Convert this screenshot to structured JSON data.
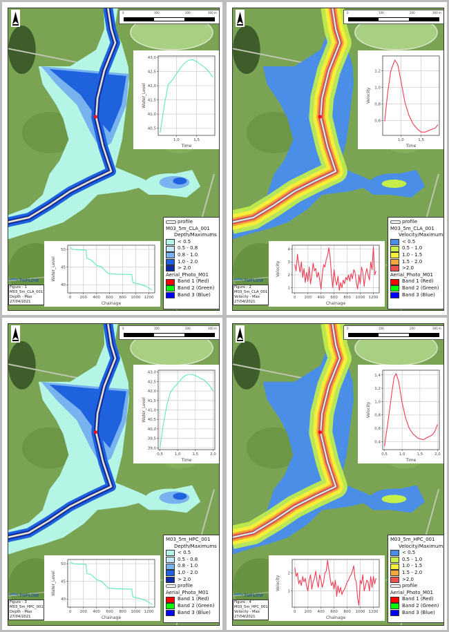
{
  "scale_bar": {
    "labels": [
      "0",
      "100",
      "200",
      "300 m"
    ]
  },
  "panels": [
    {
      "type": "depth",
      "figure_label": [
        "Figure - 1",
        "M03_5m_CLA_001",
        "Depth - Max",
        "27/04/2021"
      ],
      "logo": "TUFLOW",
      "legend": [
        {
          "kind": "profile",
          "label": "profile"
        },
        {
          "kind": "layer",
          "label": "M03_5m_CLA_001"
        },
        {
          "kind": "sublayer",
          "label": "Depth/Maximums"
        },
        {
          "kind": "swatch",
          "label": "< 0.5",
          "color": "#b4f5e6"
        },
        {
          "kind": "swatch",
          "label": "0.5 - 0.8",
          "color": "#c4e8fa"
        },
        {
          "kind": "swatch",
          "label": "0.8 - 1.0",
          "color": "#78b2ef"
        },
        {
          "kind": "swatch",
          "label": "1.0 - 2.0",
          "color": "#1e62de"
        },
        {
          "kind": "swatch",
          "label": "> 2.0",
          "color": "#0b2aa6"
        },
        {
          "kind": "layer",
          "label": "Aerial_Photo_M01"
        },
        {
          "kind": "swatch",
          "label": "Band 1 (Red)",
          "color": "#ff0000"
        },
        {
          "kind": "swatch",
          "label": "Band 2 (Green)",
          "color": "#00ff00"
        },
        {
          "kind": "swatch",
          "label": "Band 3 (Blue)",
          "color": "#0000ff"
        }
      ]
    },
    {
      "type": "velocity",
      "figure_label": [
        "Figure - 2",
        "M03_5m_CLA_001",
        "Velocity - Max",
        "27/04/2021"
      ],
      "logo": "TUFLOW",
      "legend": [
        {
          "kind": "profile",
          "label": "profile"
        },
        {
          "kind": "layer",
          "label": "M03_5m_CLA_001"
        },
        {
          "kind": "sublayer",
          "label": "Velocity/Maximums"
        },
        {
          "kind": "swatch",
          "label": "< 0.5",
          "color": "#4a8ee8"
        },
        {
          "kind": "swatch",
          "label": "0.5 - 1.0",
          "color": "#c4ef4a"
        },
        {
          "kind": "swatch",
          "label": "1.0 - 1.5",
          "color": "#f5ef3a"
        },
        {
          "kind": "swatch",
          "label": "1.5 - 2.0",
          "color": "#f4a83c"
        },
        {
          "kind": "swatch",
          "label": ">2.0",
          "color": "#ef5050"
        },
        {
          "kind": "layer",
          "label": "Aerial_Photo_M01"
        },
        {
          "kind": "swatch",
          "label": "Band 1 (Red)",
          "color": "#ff0000"
        },
        {
          "kind": "swatch",
          "label": "Band 2 (Green)",
          "color": "#00ff00"
        },
        {
          "kind": "swatch",
          "label": "Band 3 (Blue)",
          "color": "#0000ff"
        }
      ]
    },
    {
      "type": "depth",
      "figure_label": [
        "Figure - 3",
        "M03_5m_HPC_001",
        "Depth - Max",
        "27/04/2021"
      ],
      "logo": "TUFLOW",
      "legend": [
        {
          "kind": "layer",
          "label": "M03_5m_HPC_001"
        },
        {
          "kind": "sublayer",
          "label": "Depth/Maximums"
        },
        {
          "kind": "swatch",
          "label": "< 0.5",
          "color": "#b4f5e6"
        },
        {
          "kind": "swatch",
          "label": "0.5 - 0.8",
          "color": "#c4e8fa"
        },
        {
          "kind": "swatch",
          "label": "0.8 - 1.0",
          "color": "#78b2ef"
        },
        {
          "kind": "swatch",
          "label": "1.0 - 2.0",
          "color": "#1e62de"
        },
        {
          "kind": "swatch",
          "label": "> 2.0",
          "color": "#0b2aa6"
        },
        {
          "kind": "profile",
          "label": "profile"
        },
        {
          "kind": "layer",
          "label": "Aerial_Photo_M01"
        },
        {
          "kind": "swatch",
          "label": "Band 1 (Red)",
          "color": "#ff0000"
        },
        {
          "kind": "swatch",
          "label": "Band 2 (Green)",
          "color": "#00ff00"
        },
        {
          "kind": "swatch",
          "label": "Band 3 (Blue)",
          "color": "#0000ff"
        }
      ]
    },
    {
      "type": "velocity",
      "figure_label": [
        "Figure - 4",
        "M03_5m_HPC_001",
        "Velocity - Max",
        "27/04/2021"
      ],
      "logo": "TUFLOW",
      "legend": [
        {
          "kind": "layer",
          "label": "M03_5m_HPC_001"
        },
        {
          "kind": "sublayer",
          "label": "Velocity/Maximums"
        },
        {
          "kind": "swatch",
          "label": "< 0.5",
          "color": "#4a8ee8"
        },
        {
          "kind": "swatch",
          "label": "0.5 - 1.0",
          "color": "#c4ef4a"
        },
        {
          "kind": "swatch",
          "label": "1.0 - 1.5",
          "color": "#f5ef3a"
        },
        {
          "kind": "swatch",
          "label": "1.5 - 2.0",
          "color": "#f4a83c"
        },
        {
          "kind": "swatch",
          "label": ">2.0",
          "color": "#ef5050"
        },
        {
          "kind": "profile",
          "label": "profile"
        },
        {
          "kind": "layer",
          "label": "Aerial_Photo_M01"
        },
        {
          "kind": "swatch",
          "label": "Band 1 (Red)",
          "color": "#ff0000"
        },
        {
          "kind": "swatch",
          "label": "Band 2 (Green)",
          "color": "#00ff00"
        },
        {
          "kind": "swatch",
          "label": "Band 3 (Blue)",
          "color": "#0000ff"
        }
      ]
    }
  ],
  "chart_data": [
    {
      "panel": 0,
      "role": "timeseries",
      "type": "line",
      "xlabel": "Time",
      "ylabel": "Water_Level",
      "color": "#5ee8c0",
      "xlim": [
        0.55,
        1.95
      ],
      "ylim": [
        40.25,
        43.05
      ],
      "xticks": [
        {
          "v": 1.0,
          "label": "1,0"
        },
        {
          "v": 1.5,
          "label": "1,5"
        }
      ],
      "yticks": [
        {
          "v": 40.5,
          "label": "40,5"
        },
        {
          "v": 41.0,
          "label": "41,0"
        },
        {
          "v": 41.5,
          "label": "41,5"
        },
        {
          "v": 42.0,
          "label": "42,0"
        },
        {
          "v": 42.5,
          "label": "42,5"
        },
        {
          "v": 43.0,
          "label": "43,0"
        }
      ],
      "x": [
        0.6,
        0.7,
        0.8,
        0.9,
        1.0,
        1.1,
        1.2,
        1.3,
        1.4,
        1.5,
        1.6,
        1.7,
        1.8,
        1.9
      ],
      "y": [
        40.35,
        41.3,
        42.05,
        42.2,
        42.42,
        42.62,
        42.8,
        42.9,
        42.92,
        42.85,
        42.75,
        42.65,
        42.5,
        42.3
      ]
    },
    {
      "panel": 1,
      "role": "timeseries",
      "type": "line",
      "xlabel": "Time",
      "ylabel": "Velocity",
      "color": "#ef3b52",
      "xlim": [
        0.55,
        1.95
      ],
      "ylim": [
        0.42,
        1.38
      ],
      "xticks": [
        {
          "v": 1.0,
          "label": "1,0"
        },
        {
          "v": 1.5,
          "label": "1,5"
        }
      ],
      "yticks": [
        {
          "v": 0.6,
          "label": "0,6"
        },
        {
          "v": 0.8,
          "label": "0,8"
        },
        {
          "v": 1.0,
          "label": "1,0"
        },
        {
          "v": 1.2,
          "label": "1,2"
        }
      ],
      "x": [
        0.6,
        0.67,
        0.75,
        0.85,
        0.92,
        1.0,
        1.1,
        1.2,
        1.3,
        1.4,
        1.5,
        1.6,
        1.7,
        1.85,
        1.92
      ],
      "y": [
        0.59,
        0.92,
        1.2,
        1.33,
        1.28,
        1.08,
        0.82,
        0.66,
        0.56,
        0.5,
        0.46,
        0.46,
        0.48,
        0.51,
        0.55
      ]
    },
    {
      "panel": 2,
      "role": "timeseries",
      "type": "line",
      "xlabel": "Time",
      "ylabel": "Water_Level",
      "color": "#5ee8c0",
      "xlim": [
        0.45,
        2.05
      ],
      "ylim": [
        38.9,
        43.1
      ],
      "xticks": [
        {
          "v": 0.5,
          "label": "0,5"
        },
        {
          "v": 1.0,
          "label": "1,0"
        },
        {
          "v": 1.5,
          "label": "1,5"
        },
        {
          "v": 2.0,
          "label": "2,0"
        }
      ],
      "yticks": [
        {
          "v": 39.0,
          "label": "39,0"
        },
        {
          "v": 39.5,
          "label": "39,5"
        },
        {
          "v": 40.0,
          "label": "40,0"
        },
        {
          "v": 40.5,
          "label": "40,5"
        },
        {
          "v": 41.0,
          "label": "41,0"
        },
        {
          "v": 41.5,
          "label": "41,5"
        },
        {
          "v": 42.0,
          "label": "42,0"
        },
        {
          "v": 42.5,
          "label": "42,5"
        },
        {
          "v": 43.0,
          "label": "43,0"
        }
      ],
      "x": [
        0.5,
        0.6,
        0.7,
        0.8,
        0.9,
        1.0,
        1.1,
        1.2,
        1.3,
        1.4,
        1.5,
        1.6,
        1.75,
        1.9,
        2.0
      ],
      "y": [
        39.0,
        40.3,
        41.3,
        41.95,
        42.2,
        42.4,
        42.62,
        42.8,
        42.88,
        42.88,
        42.82,
        42.72,
        42.58,
        42.3,
        42.0
      ]
    },
    {
      "panel": 3,
      "role": "timeseries",
      "type": "line",
      "xlabel": "Time",
      "ylabel": "Velocity",
      "color": "#ef3b52",
      "xlim": [
        0.45,
        2.05
      ],
      "ylim": [
        0.28,
        1.47
      ],
      "xticks": [
        {
          "v": 0.5,
          "label": "0,5"
        },
        {
          "v": 1.0,
          "label": "1,0"
        },
        {
          "v": 1.5,
          "label": "1,5"
        },
        {
          "v": 2.0,
          "label": "2,0"
        }
      ],
      "yticks": [
        {
          "v": 0.4,
          "label": "0,4"
        },
        {
          "v": 0.6,
          "label": "0,6"
        },
        {
          "v": 0.8,
          "label": "0,8"
        },
        {
          "v": 1.0,
          "label": "1,0"
        },
        {
          "v": 1.2,
          "label": "1,2"
        },
        {
          "v": 1.4,
          "label": "1,4"
        }
      ],
      "x": [
        0.5,
        0.6,
        0.7,
        0.77,
        0.83,
        0.9,
        1.0,
        1.1,
        1.2,
        1.3,
        1.45,
        1.6,
        1.7,
        1.85,
        1.92,
        2.0
      ],
      "y": [
        0.33,
        0.7,
        1.1,
        1.36,
        1.42,
        1.3,
        0.98,
        0.75,
        0.6,
        0.52,
        0.45,
        0.43,
        0.46,
        0.5,
        0.55,
        0.66
      ]
    },
    {
      "panel": 0,
      "role": "profile",
      "type": "line",
      "xlabel": "Chainage",
      "ylabel": "Water_Level",
      "color": "#5ee8c0",
      "xlim": [
        -40,
        1290
      ],
      "ylim": [
        37.7,
        51.2
      ],
      "xticks": [
        {
          "v": 0,
          "label": "0"
        },
        {
          "v": 200,
          "label": "200"
        },
        {
          "v": 400,
          "label": "400"
        },
        {
          "v": 600,
          "label": "600"
        },
        {
          "v": 800,
          "label": "800"
        },
        {
          "v": 1000,
          "label": "1000"
        },
        {
          "v": 1200,
          "label": "1200"
        }
      ],
      "yticks": [
        {
          "v": 40,
          "label": "40"
        },
        {
          "v": 45,
          "label": "45"
        },
        {
          "v": 50,
          "label": "50"
        }
      ],
      "x": [
        0,
        40,
        240,
        255,
        320,
        400,
        470,
        520,
        580,
        700,
        940,
        955,
        1050,
        1150,
        1250
      ],
      "y": [
        50.5,
        50.0,
        49.8,
        47.5,
        47.0,
        45.5,
        45.1,
        44.2,
        43.2,
        43.0,
        42.9,
        40.6,
        40.2,
        39.6,
        38.5
      ]
    },
    {
      "panel": 1,
      "role": "profile",
      "type": "line",
      "xlabel": "Chainage",
      "ylabel": "Velocity",
      "color": "#ef3b52",
      "xlim": [
        -40,
        1290
      ],
      "ylim": [
        0.6,
        4.3
      ],
      "xticks": [
        {
          "v": 0,
          "label": "0"
        },
        {
          "v": 200,
          "label": "200"
        },
        {
          "v": 400,
          "label": "400"
        },
        {
          "v": 600,
          "label": "600"
        },
        {
          "v": 800,
          "label": "800"
        },
        {
          "v": 1000,
          "label": "1000"
        },
        {
          "v": 1200,
          "label": "1200"
        }
      ],
      "yticks": [
        {
          "v": 1,
          "label": "1"
        },
        {
          "v": 2,
          "label": "2"
        },
        {
          "v": 3,
          "label": "3"
        },
        {
          "v": 4,
          "label": "4"
        }
      ],
      "x_step": 20,
      "y": [
        2.8,
        2.3,
        3.6,
        2.8,
        2.2,
        3.0,
        1.8,
        2.5,
        1.4,
        2.2,
        1.5,
        2.6,
        1.3,
        2.0,
        2.9,
        2.3,
        2.5,
        1.8,
        2.2,
        1.6,
        0.9,
        2.0,
        2.8,
        2.6,
        3.2,
        3.5,
        4.1,
        3.4,
        2.0,
        1.0,
        2.4,
        1.6,
        1.2,
        1.9,
        0.8,
        1.4,
        1.0,
        1.6,
        1.3,
        1.8,
        1.6,
        2.0,
        1.5,
        2.1,
        1.7,
        2.4,
        2.2,
        1.4,
        0.9,
        2.0,
        1.3,
        2.6,
        2.2,
        1.1,
        2.0,
        2.5,
        2.0,
        1.6,
        3.0,
        2.4,
        4.2,
        2.0,
        2.3
      ]
    },
    {
      "panel": 2,
      "role": "profile",
      "type": "line",
      "xlabel": "Chainage",
      "ylabel": "Water_Level",
      "color": "#5ee8c0",
      "xlim": [
        -40,
        1290
      ],
      "ylim": [
        37.7,
        51.2
      ],
      "xticks": [
        {
          "v": 0,
          "label": "0"
        },
        {
          "v": 200,
          "label": "200"
        },
        {
          "v": 400,
          "label": "400"
        },
        {
          "v": 600,
          "label": "600"
        },
        {
          "v": 800,
          "label": "800"
        },
        {
          "v": 1000,
          "label": "1000"
        },
        {
          "v": 1200,
          "label": "1200"
        }
      ],
      "yticks": [
        {
          "v": 40,
          "label": "40"
        },
        {
          "v": 45,
          "label": "45"
        },
        {
          "v": 50,
          "label": "50"
        }
      ],
      "x": [
        0,
        40,
        240,
        255,
        320,
        400,
        470,
        520,
        580,
        700,
        940,
        955,
        1050,
        1150,
        1250
      ],
      "y": [
        50.5,
        50.0,
        49.8,
        47.2,
        46.9,
        45.5,
        45.1,
        44.2,
        43.1,
        42.9,
        42.8,
        40.6,
        40.2,
        39.6,
        38.5
      ]
    },
    {
      "panel": 3,
      "role": "profile",
      "type": "line",
      "xlabel": "Chainage",
      "ylabel": "Velocity",
      "color": "#ef3b52",
      "xlim": [
        -40,
        1290
      ],
      "ylim": [
        0.1,
        2.75
      ],
      "xticks": [
        {
          "v": 0,
          "label": "0"
        },
        {
          "v": 200,
          "label": "200"
        },
        {
          "v": 400,
          "label": "400"
        },
        {
          "v": 600,
          "label": "600"
        },
        {
          "v": 800,
          "label": "800"
        },
        {
          "v": 1000,
          "label": "1000"
        },
        {
          "v": 1200,
          "label": "1200"
        }
      ],
      "yticks": [
        {
          "v": 1,
          "label": "1"
        },
        {
          "v": 2,
          "label": "2"
        }
      ],
      "x_step": 20,
      "y": [
        2.3,
        1.8,
        2.0,
        1.4,
        1.6,
        1.3,
        1.8,
        1.5,
        1.7,
        1.3,
        1.0,
        1.6,
        1.9,
        1.1,
        1.5,
        1.7,
        2.1,
        1.5,
        1.2,
        1.9,
        1.6,
        1.2,
        1.5,
        2.0,
        2.1,
        2.7,
        2.2,
        1.7,
        1.3,
        1.5,
        1.1,
        1.6,
        0.7,
        1.3,
        0.9,
        1.2,
        0.8,
        1.0,
        1.1,
        1.3,
        1.5,
        1.6,
        1.8,
        1.9,
        2.1,
        2.4,
        1.7,
        1.5,
        0.6,
        0.2,
        1.6,
        1.4,
        1.9,
        1.0,
        1.3,
        1.6,
        1.5,
        1.0,
        1.8,
        1.2,
        1.8,
        1.4,
        1.7
      ]
    }
  ]
}
